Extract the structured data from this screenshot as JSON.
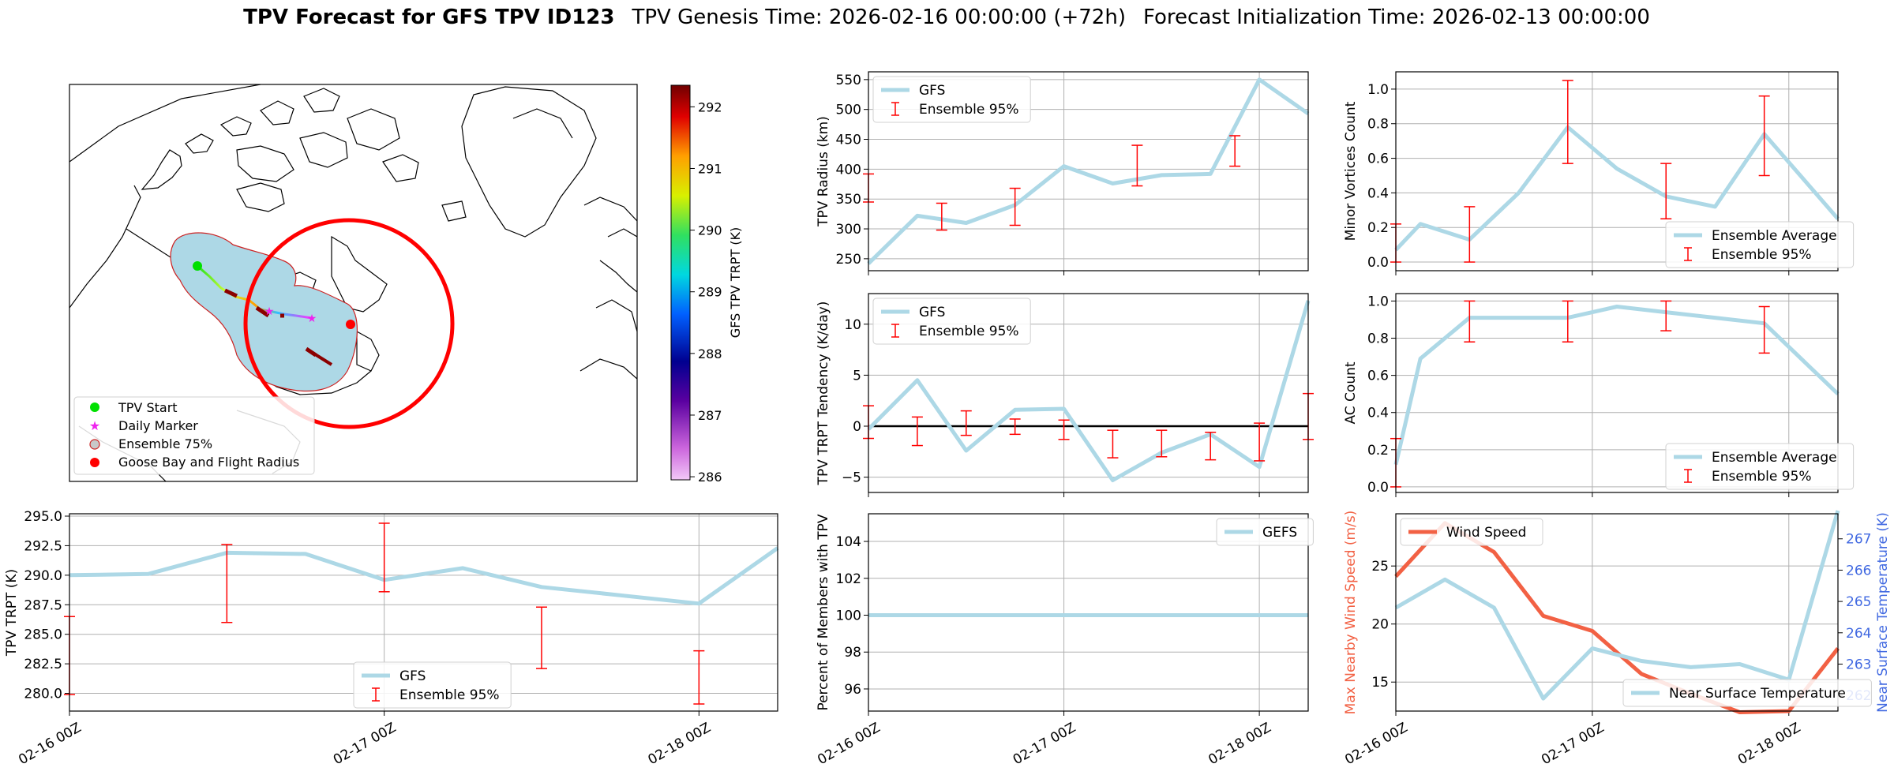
{
  "figure": {
    "title_bold": "TPV Forecast for GFS TPV ID123",
    "title_genesis": "TPV Genesis Time: 2026-02-16 00:00:00 (+72h)",
    "title_init": "Forecast Initialization Time: 2026-02-13 00:00:00"
  },
  "colors": {
    "gfs": "#add8e6",
    "errorbar": "#ff0000",
    "wind": "#f26144",
    "temp_axis": "#4169e1",
    "ensemble_fill": "#add8e6",
    "goose_bay": "#ff0000",
    "start": "#00e000",
    "daily": "#ee22ee"
  },
  "map": {
    "legend": [
      "TPV Start",
      "Daily Marker",
      "Ensemble 75%",
      "Goose Bay and Flight Radius"
    ],
    "colorbar_label": "GFS TPV TRPT (K)",
    "colorbar_ticks": [
      "292",
      "291",
      "290",
      "289",
      "288",
      "287",
      "286"
    ]
  },
  "chart_data": [
    {
      "id": "trpt",
      "type": "line",
      "title": "",
      "ylabel": "TPV TRPT (K)",
      "x_tick_labels": [
        "02-16 00Z",
        "02-17 00Z",
        "02-18 00Z"
      ],
      "x_ticks": [
        0,
        24,
        48
      ],
      "xlim": [
        0,
        54
      ],
      "ylim": [
        278.5,
        295.2
      ],
      "y_ticks": [
        "280.0",
        "282.5",
        "285.0",
        "287.5",
        "290.0",
        "292.5",
        "295.0"
      ],
      "y_tick_values": [
        280,
        282.5,
        285,
        287.5,
        290,
        292.5,
        295
      ],
      "legend": [
        "GFS",
        "Ensemble 95%"
      ],
      "legend_loc": "lower-center",
      "series": [
        {
          "name": "GFS",
          "x": [
            0,
            6,
            12,
            18,
            24,
            30,
            36,
            42,
            48,
            54
          ],
          "y": [
            290.0,
            290.1,
            291.9,
            291.8,
            289.6,
            290.6,
            289.0,
            288.3,
            287.6,
            292.3
          ]
        }
      ],
      "errorbars": [
        {
          "x": 0,
          "low": 279.9,
          "high": 286.5
        },
        {
          "x": 12,
          "low": 286.0,
          "high": 292.6
        },
        {
          "x": 24,
          "low": 288.6,
          "high": 294.4
        },
        {
          "x": 36,
          "low": 282.1,
          "high": 287.3
        },
        {
          "x": 48,
          "low": 279.1,
          "high": 283.6
        }
      ]
    },
    {
      "id": "radius",
      "type": "line",
      "ylabel": "TPV Radius (km)",
      "xlim": [
        0,
        54
      ],
      "ylim": [
        230,
        563
      ],
      "y_ticks": [
        "250",
        "300",
        "350",
        "400",
        "450",
        "500",
        "550"
      ],
      "y_tick_values": [
        250,
        300,
        350,
        400,
        450,
        500,
        550
      ],
      "legend": [
        "GFS",
        "Ensemble 95%"
      ],
      "legend_loc": "top-left",
      "series": [
        {
          "name": "GFS",
          "x": [
            0,
            6,
            12,
            18,
            24,
            30,
            36,
            42,
            48,
            54
          ],
          "y": [
            242,
            322,
            310,
            340,
            405,
            376,
            390,
            392,
            550,
            493
          ]
        }
      ],
      "errorbars": [
        {
          "x": 0,
          "low": 345,
          "high": 392
        },
        {
          "x": 9,
          "low": 298,
          "high": 343
        },
        {
          "x": 18,
          "low": 306,
          "high": 368
        },
        {
          "x": 33,
          "low": 372,
          "high": 440
        },
        {
          "x": 45,
          "low": 405,
          "high": 456
        }
      ]
    },
    {
      "id": "minor",
      "type": "line",
      "ylabel": "Minor Vortices Count",
      "xlim": [
        0,
        54
      ],
      "ylim": [
        -0.05,
        1.1
      ],
      "y_ticks": [
        "0.0",
        "0.2",
        "0.4",
        "0.6",
        "0.8",
        "1.0"
      ],
      "y_tick_values": [
        0,
        0.2,
        0.4,
        0.6,
        0.8,
        1.0
      ],
      "legend": [
        "Ensemble Average",
        "Ensemble 95%"
      ],
      "legend_loc": "lower-right",
      "series": [
        {
          "name": "Ensemble Average",
          "x": [
            0,
            3,
            9,
            15,
            21,
            27,
            33,
            39,
            45,
            54
          ],
          "y": [
            0.07,
            0.22,
            0.13,
            0.4,
            0.78,
            0.54,
            0.38,
            0.32,
            0.74,
            0.25
          ]
        }
      ],
      "errorbars": [
        {
          "x": 0,
          "low": 0.0,
          "high": 0.22
        },
        {
          "x": 9,
          "low": 0.0,
          "high": 0.32
        },
        {
          "x": 21,
          "low": 0.57,
          "high": 1.05
        },
        {
          "x": 33,
          "low": 0.25,
          "high": 0.57
        },
        {
          "x": 45,
          "low": 0.5,
          "high": 0.96
        }
      ]
    },
    {
      "id": "tendency",
      "type": "line",
      "ylabel": "TPV TRPT Tendency (K/day)",
      "xlim": [
        0,
        54
      ],
      "ylim": [
        -6.5,
        13
      ],
      "y_ticks": [
        "−5",
        "0",
        "5",
        "10"
      ],
      "y_tick_values": [
        -5,
        0,
        5,
        10
      ],
      "legend": [
        "GFS",
        "Ensemble 95%"
      ],
      "legend_loc": "top-left",
      "series": [
        {
          "name": "GFS",
          "x": [
            0,
            6,
            12,
            18,
            24,
            30,
            36,
            42,
            48,
            54
          ],
          "y": [
            -0.3,
            4.5,
            -2.4,
            1.6,
            1.7,
            -5.3,
            -2.6,
            -0.8,
            -4.0,
            12.3
          ]
        }
      ],
      "errorbars": [
        {
          "x": 0,
          "low": -1.2,
          "high": 2.0
        },
        {
          "x": 6,
          "low": -1.9,
          "high": 0.9
        },
        {
          "x": 12,
          "low": -0.9,
          "high": 1.5
        },
        {
          "x": 18,
          "low": -0.8,
          "high": 0.7
        },
        {
          "x": 24,
          "low": -1.3,
          "high": 0.6
        },
        {
          "x": 30,
          "low": -3.1,
          "high": -0.4
        },
        {
          "x": 36,
          "low": -3.0,
          "high": -0.4
        },
        {
          "x": 42,
          "low": -3.3,
          "high": -0.6
        },
        {
          "x": 48,
          "low": -3.4,
          "high": 0.3
        },
        {
          "x": 54,
          "low": -1.3,
          "high": 3.2
        }
      ]
    },
    {
      "id": "ac",
      "type": "line",
      "ylabel": "AC Count",
      "xlim": [
        0,
        54
      ],
      "ylim": [
        -0.03,
        1.04
      ],
      "y_ticks": [
        "0.0",
        "0.2",
        "0.4",
        "0.6",
        "0.8",
        "1.0"
      ],
      "y_tick_values": [
        0,
        0.2,
        0.4,
        0.6,
        0.8,
        1.0
      ],
      "legend": [
        "Ensemble Average",
        "Ensemble 95%"
      ],
      "legend_loc": "lower-right",
      "series": [
        {
          "name": "Ensemble Average",
          "x": [
            0,
            3,
            9,
            15,
            21,
            27,
            33,
            39,
            45,
            54
          ],
          "y": [
            0.12,
            0.69,
            0.91,
            0.91,
            0.91,
            0.97,
            0.94,
            0.91,
            0.88,
            0.5
          ]
        }
      ],
      "errorbars": [
        {
          "x": 0,
          "low": 0.0,
          "high": 0.26
        },
        {
          "x": 9,
          "low": 0.78,
          "high": 1.0
        },
        {
          "x": 21,
          "low": 0.78,
          "high": 1.0
        },
        {
          "x": 33,
          "low": 0.84,
          "high": 1.0
        },
        {
          "x": 45,
          "low": 0.72,
          "high": 0.97
        }
      ]
    },
    {
      "id": "percent",
      "type": "line",
      "ylabel": "Percent of Members with TPV",
      "x_tick_labels": [
        "02-16 00Z",
        "02-17 00Z",
        "02-18 00Z"
      ],
      "x_ticks": [
        0,
        24,
        48
      ],
      "xlim": [
        0,
        54
      ],
      "ylim": [
        94.8,
        105.5
      ],
      "y_ticks": [
        "96",
        "98",
        "100",
        "102",
        "104"
      ],
      "y_tick_values": [
        96,
        98,
        100,
        102,
        104
      ],
      "legend": [
        "GEFS"
      ],
      "legend_loc": "top-right",
      "series": [
        {
          "name": "GEFS",
          "x": [
            0,
            54
          ],
          "y": [
            100,
            100
          ]
        }
      ]
    },
    {
      "id": "wind",
      "type": "line",
      "ylabel": "Max Nearby Wind Speed (m/s)",
      "ylabel_right": "Near Surface Temperature (K)",
      "x_tick_labels": [
        "02-16 00Z",
        "02-17 00Z",
        "02-18 00Z"
      ],
      "x_ticks": [
        0,
        24,
        48
      ],
      "xlim": [
        0,
        54
      ],
      "ylim": [
        12.5,
        29.5
      ],
      "y_ticks": [
        "15",
        "20",
        "25"
      ],
      "y_tick_values": [
        15,
        20,
        25
      ],
      "ylim_right": [
        261.5,
        267.8
      ],
      "y_ticks_right": [
        "262",
        "263",
        "264",
        "265",
        "266",
        "267"
      ],
      "y_tick_values_right": [
        262,
        263,
        264,
        265,
        266,
        267
      ],
      "legend": [
        "Wind Speed",
        "Near Surface Temperature"
      ],
      "series": [
        {
          "name": "Wind Speed",
          "axis": "left",
          "x": [
            0,
            6,
            12,
            18,
            24,
            30,
            36,
            42,
            48,
            54
          ],
          "y": [
            24.1,
            28.7,
            26.2,
            20.7,
            19.4,
            15.7,
            14.0,
            12.4,
            12.5,
            17.9
          ]
        },
        {
          "name": "Near Surface Temperature",
          "axis": "right",
          "x": [
            0,
            6,
            12,
            18,
            24,
            30,
            36,
            42,
            48,
            54
          ],
          "y": [
            264.8,
            265.7,
            264.8,
            261.9,
            263.5,
            263.1,
            262.9,
            263.0,
            262.5,
            267.9
          ]
        }
      ]
    }
  ]
}
